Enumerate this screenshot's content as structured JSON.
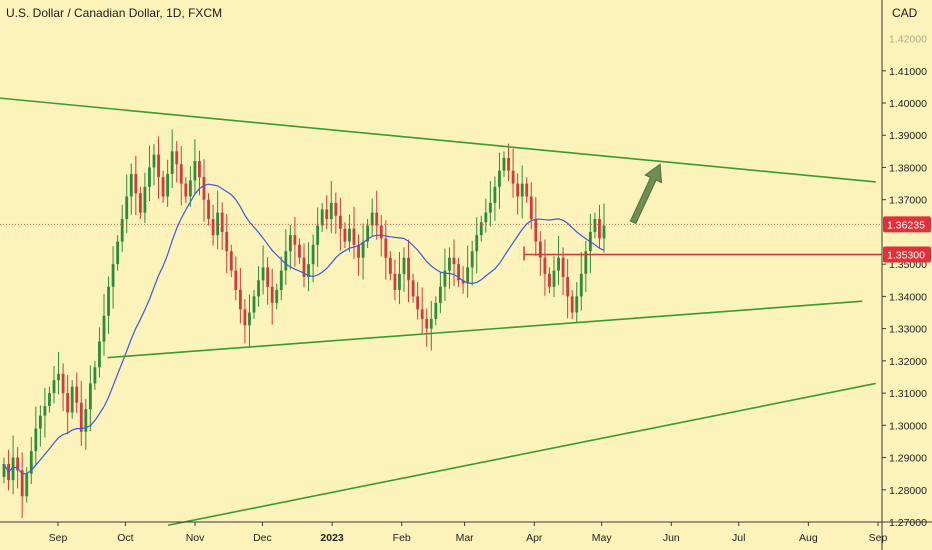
{
  "header": {
    "title": "U.S. Dollar / Canadian Dollar, 1D, FXCM",
    "currency": "CAD"
  },
  "chart_data": {
    "type": "candlestick",
    "title": "U.S. Dollar / Canadian Dollar, 1D, FXCM",
    "y_unit": "CAD",
    "ylim": [
      1.27,
      1.427
    ],
    "y_ticks": [
      "1.41000",
      "1.40000",
      "1.39000",
      "1.38000",
      "1.37000",
      "1.35000",
      "1.34000",
      "1.33000",
      "1.32000",
      "1.31000",
      "1.30000",
      "1.29000",
      "1.28000",
      "1.27000"
    ],
    "x_ticks": [
      {
        "label": "Sep",
        "bold": false
      },
      {
        "label": "Oct",
        "bold": false
      },
      {
        "label": "Nov",
        "bold": false
      },
      {
        "label": "Dec",
        "bold": false
      },
      {
        "label": "2023",
        "bold": true
      },
      {
        "label": "Feb",
        "bold": false
      },
      {
        "label": "Mar",
        "bold": false
      },
      {
        "label": "Apr",
        "bold": false
      },
      {
        "label": "May",
        "bold": false
      },
      {
        "label": "Jun",
        "bold": false
      },
      {
        "label": "Jul",
        "bold": false
      },
      {
        "label": "Aug",
        "bold": false
      },
      {
        "label": "Sep",
        "bold": false
      }
    ],
    "price_tags": [
      {
        "label": "1.36235",
        "value": 1.36235,
        "color": "#e0303a",
        "dotted_line": true
      },
      {
        "label": "1.35300",
        "value": 1.353,
        "color": "#e0303a",
        "dotted_line": false
      }
    ],
    "close_series_approx": [
      1.288,
      1.283,
      1.29,
      1.286,
      1.278,
      1.285,
      1.292,
      1.299,
      1.303,
      1.306,
      1.31,
      1.314,
      1.316,
      1.31,
      1.304,
      1.312,
      1.307,
      1.298,
      1.305,
      1.313,
      1.318,
      1.326,
      1.334,
      1.343,
      1.35,
      1.357,
      1.364,
      1.371,
      1.378,
      1.372,
      1.366,
      1.374,
      1.38,
      1.384,
      1.377,
      1.371,
      1.378,
      1.385,
      1.381,
      1.375,
      1.371,
      1.376,
      1.382,
      1.377,
      1.37,
      1.364,
      1.359,
      1.366,
      1.36,
      1.354,
      1.348,
      1.342,
      1.336,
      1.331,
      1.335,
      1.34,
      1.345,
      1.349,
      1.343,
      1.338,
      1.342,
      1.348,
      1.354,
      1.359,
      1.356,
      1.352,
      1.346,
      1.35,
      1.356,
      1.362,
      1.367,
      1.364,
      1.369,
      1.365,
      1.361,
      1.357,
      1.361,
      1.356,
      1.352,
      1.357,
      1.362,
      1.366,
      1.362,
      1.358,
      1.352,
      1.347,
      1.342,
      1.347,
      1.352,
      1.345,
      1.34,
      1.336,
      1.333,
      1.33,
      1.333,
      1.338,
      1.343,
      1.348,
      1.352,
      1.35,
      1.345,
      1.344,
      1.349,
      1.354,
      1.359,
      1.363,
      1.366,
      1.369,
      1.374,
      1.379,
      1.383,
      1.379,
      1.375,
      1.371,
      1.375,
      1.371,
      1.364,
      1.357,
      1.352,
      1.347,
      1.343,
      1.348,
      1.352,
      1.346,
      1.34,
      1.335,
      1.34,
      1.347,
      1.354,
      1.36,
      1.364,
      1.358,
      1.362
    ],
    "moving_average": {
      "color": "#3a5bd9",
      "period": 20
    },
    "trendlines": [
      {
        "name": "upper-resistance",
        "color": "#3a9a2f",
        "from": {
          "date": "2022-07-15",
          "value": 1.403
        },
        "to": {
          "date": "2023-08-31",
          "value": 1.3755
        }
      },
      {
        "name": "middle-support",
        "color": "#3a9a2f",
        "from": {
          "date": "2022-09-23",
          "value": 1.321
        },
        "to": {
          "date": "2023-08-25",
          "value": 1.3385
        }
      },
      {
        "name": "lower-support",
        "color": "#3a9a2f",
        "from": {
          "date": "2022-10-20",
          "value": 1.269
        },
        "to": {
          "date": "2023-08-31",
          "value": 1.313
        }
      }
    ],
    "horizontal_level": {
      "value": 1.353,
      "color": "#e0303a"
    },
    "annotation_arrow": {
      "color": "#6f8f52",
      "direction": "up"
    },
    "colors": {
      "bull": "#2e8b3a",
      "bear": "#d13b3b",
      "background": "#fcf3bb"
    },
    "grid": false,
    "legend": "none"
  }
}
